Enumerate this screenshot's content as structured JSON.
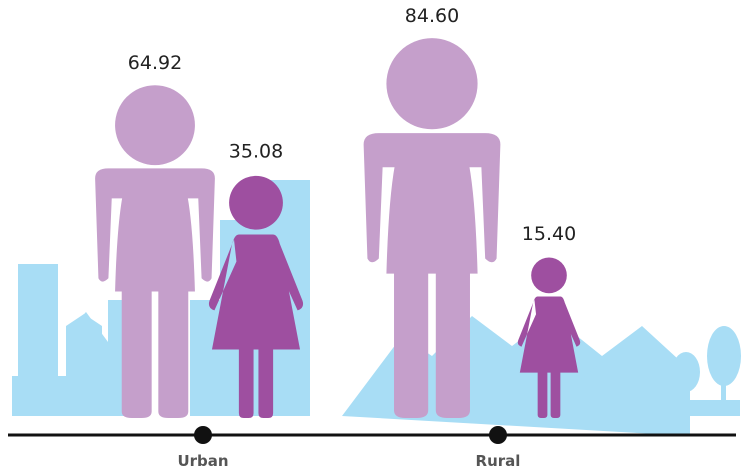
{
  "chart_data": {
    "type": "pictograph",
    "categories": [
      "Urban",
      "Rural"
    ],
    "series": [
      {
        "shape": "man",
        "color": "#c59fcb",
        "values": [
          64.92,
          84.6
        ],
        "value_labels": [
          "64.92",
          "84.60"
        ]
      },
      {
        "shape": "woman",
        "color": "#9e4fa0",
        "values": [
          35.08,
          15.4
        ],
        "value_labels": [
          "35.08",
          "15.40"
        ]
      }
    ]
  }
}
